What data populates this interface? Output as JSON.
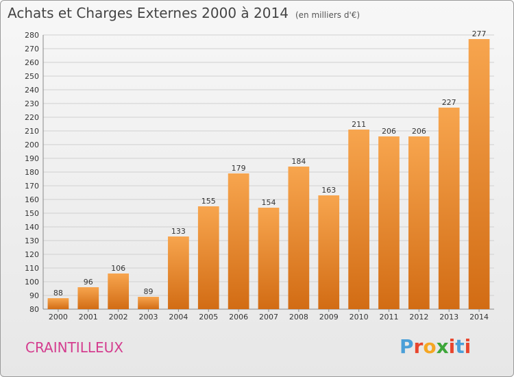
{
  "header": {
    "title": "Achats et Charges Externes 2000 à 2014",
    "unit": "(en milliers d'€)"
  },
  "footer": {
    "commune": "CRAINTILLEUX",
    "logo_letters": [
      "P",
      "r",
      "o",
      "x",
      "i",
      "t",
      "i"
    ]
  },
  "colors": {
    "bar_light": "#f7a54e",
    "bar_dark": "#d26c14",
    "commune": "#d43c8e",
    "logo": [
      "#4a9fd8",
      "#e8452d",
      "#f5a623",
      "#3da63a",
      "#e8452d",
      "#4a9fd8",
      "#e8452d"
    ]
  },
  "chart_data": {
    "type": "bar",
    "title": "Achats et Charges Externes 2000 à 2014",
    "xlabel": "",
    "ylabel": "",
    "categories": [
      "2000",
      "2001",
      "2002",
      "2003",
      "2004",
      "2005",
      "2006",
      "2007",
      "2008",
      "2009",
      "2010",
      "2011",
      "2012",
      "2013",
      "2014"
    ],
    "values": [
      88,
      96,
      106,
      89,
      133,
      155,
      179,
      154,
      184,
      163,
      211,
      206,
      206,
      227,
      277
    ],
    "ylim": [
      80,
      280
    ],
    "yticks": [
      "80",
      "90",
      "100",
      "110",
      "120",
      "130",
      "140",
      "150",
      "160",
      "170",
      "180",
      "190",
      "200",
      "210",
      "220",
      "230",
      "240",
      "250",
      "260",
      "270",
      "280"
    ],
    "grid": true,
    "legend": "none"
  }
}
